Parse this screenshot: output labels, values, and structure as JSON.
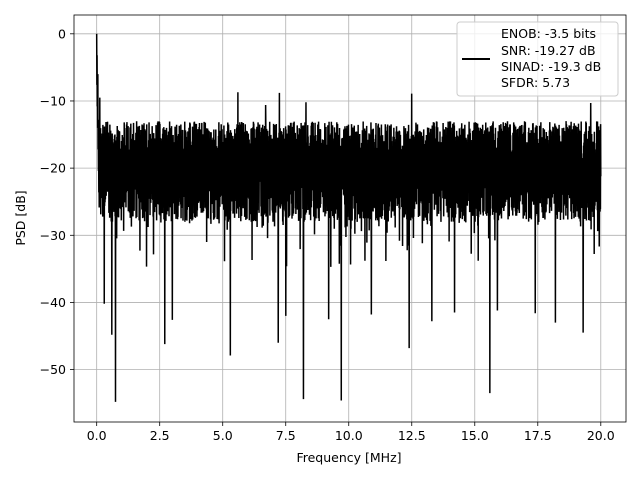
{
  "chart_data": {
    "type": "line",
    "title": "",
    "xlabel": "Frequency [MHz]",
    "ylabel": "PSD [dB]",
    "xlim": [
      -0.9,
      21.0
    ],
    "ylim": [
      -57.8,
      2.8
    ],
    "x_ticks": [
      0.0,
      2.5,
      5.0,
      7.5,
      10.0,
      12.5,
      15.0,
      17.5,
      20.0
    ],
    "x_tick_labels": [
      "0.0",
      "2.5",
      "5.0",
      "7.5",
      "10.0",
      "12.5",
      "15.0",
      "17.5",
      "20.0"
    ],
    "y_ticks": [
      0,
      -10,
      -20,
      -30,
      -40,
      -50
    ],
    "y_tick_labels": [
      "0",
      "−10",
      "−20",
      "−30",
      "−40",
      "−50"
    ],
    "grid": true,
    "legend_position": "top-right",
    "series": [
      {
        "color": "#000000",
        "x_range": [
          0.0,
          20.0
        ],
        "noise_floor_db": -20,
        "typical_upper_db": -13,
        "typical_lower_db": -28,
        "peak_db": 0,
        "peaks": [
          {
            "x": 0.0,
            "y": 0.0
          },
          {
            "x": 0.05,
            "y": -6.0
          },
          {
            "x": 0.12,
            "y": -9.5
          },
          {
            "x": 7.25,
            "y": -8.8
          },
          {
            "x": 5.6,
            "y": -8.7
          },
          {
            "x": 12.5,
            "y": -8.9
          },
          {
            "x": 19.6,
            "y": -10.3
          },
          {
            "x": 8.3,
            "y": -10.2
          },
          {
            "x": 6.7,
            "y": -10.6
          }
        ],
        "dips": [
          {
            "x": 0.75,
            "y": -54.8
          },
          {
            "x": 8.2,
            "y": -54.4
          },
          {
            "x": 9.7,
            "y": -54.6
          },
          {
            "x": 15.6,
            "y": -53.5
          },
          {
            "x": 12.4,
            "y": -46.8
          },
          {
            "x": 7.2,
            "y": -46.0
          },
          {
            "x": 5.3,
            "y": -47.9
          },
          {
            "x": 2.7,
            "y": -46.2
          },
          {
            "x": 0.6,
            "y": -44.8
          },
          {
            "x": 0.3,
            "y": -40.2
          },
          {
            "x": 18.2,
            "y": -43.0
          },
          {
            "x": 19.3,
            "y": -44.5
          },
          {
            "x": 3.0,
            "y": -42.6
          },
          {
            "x": 7.5,
            "y": -42.0
          },
          {
            "x": 9.2,
            "y": -42.5
          },
          {
            "x": 13.3,
            "y": -42.8
          },
          {
            "x": 14.2,
            "y": -41.5
          },
          {
            "x": 15.9,
            "y": -41.2
          },
          {
            "x": 17.4,
            "y": -41.6
          },
          {
            "x": 10.9,
            "y": -41.8
          }
        ]
      }
    ]
  },
  "legend": {
    "lines": [
      "ENOB: -3.5 bits",
      "SNR: -19.27 dB",
      "SINAD: -19.3 dB",
      "SFDR: 5.73"
    ]
  }
}
